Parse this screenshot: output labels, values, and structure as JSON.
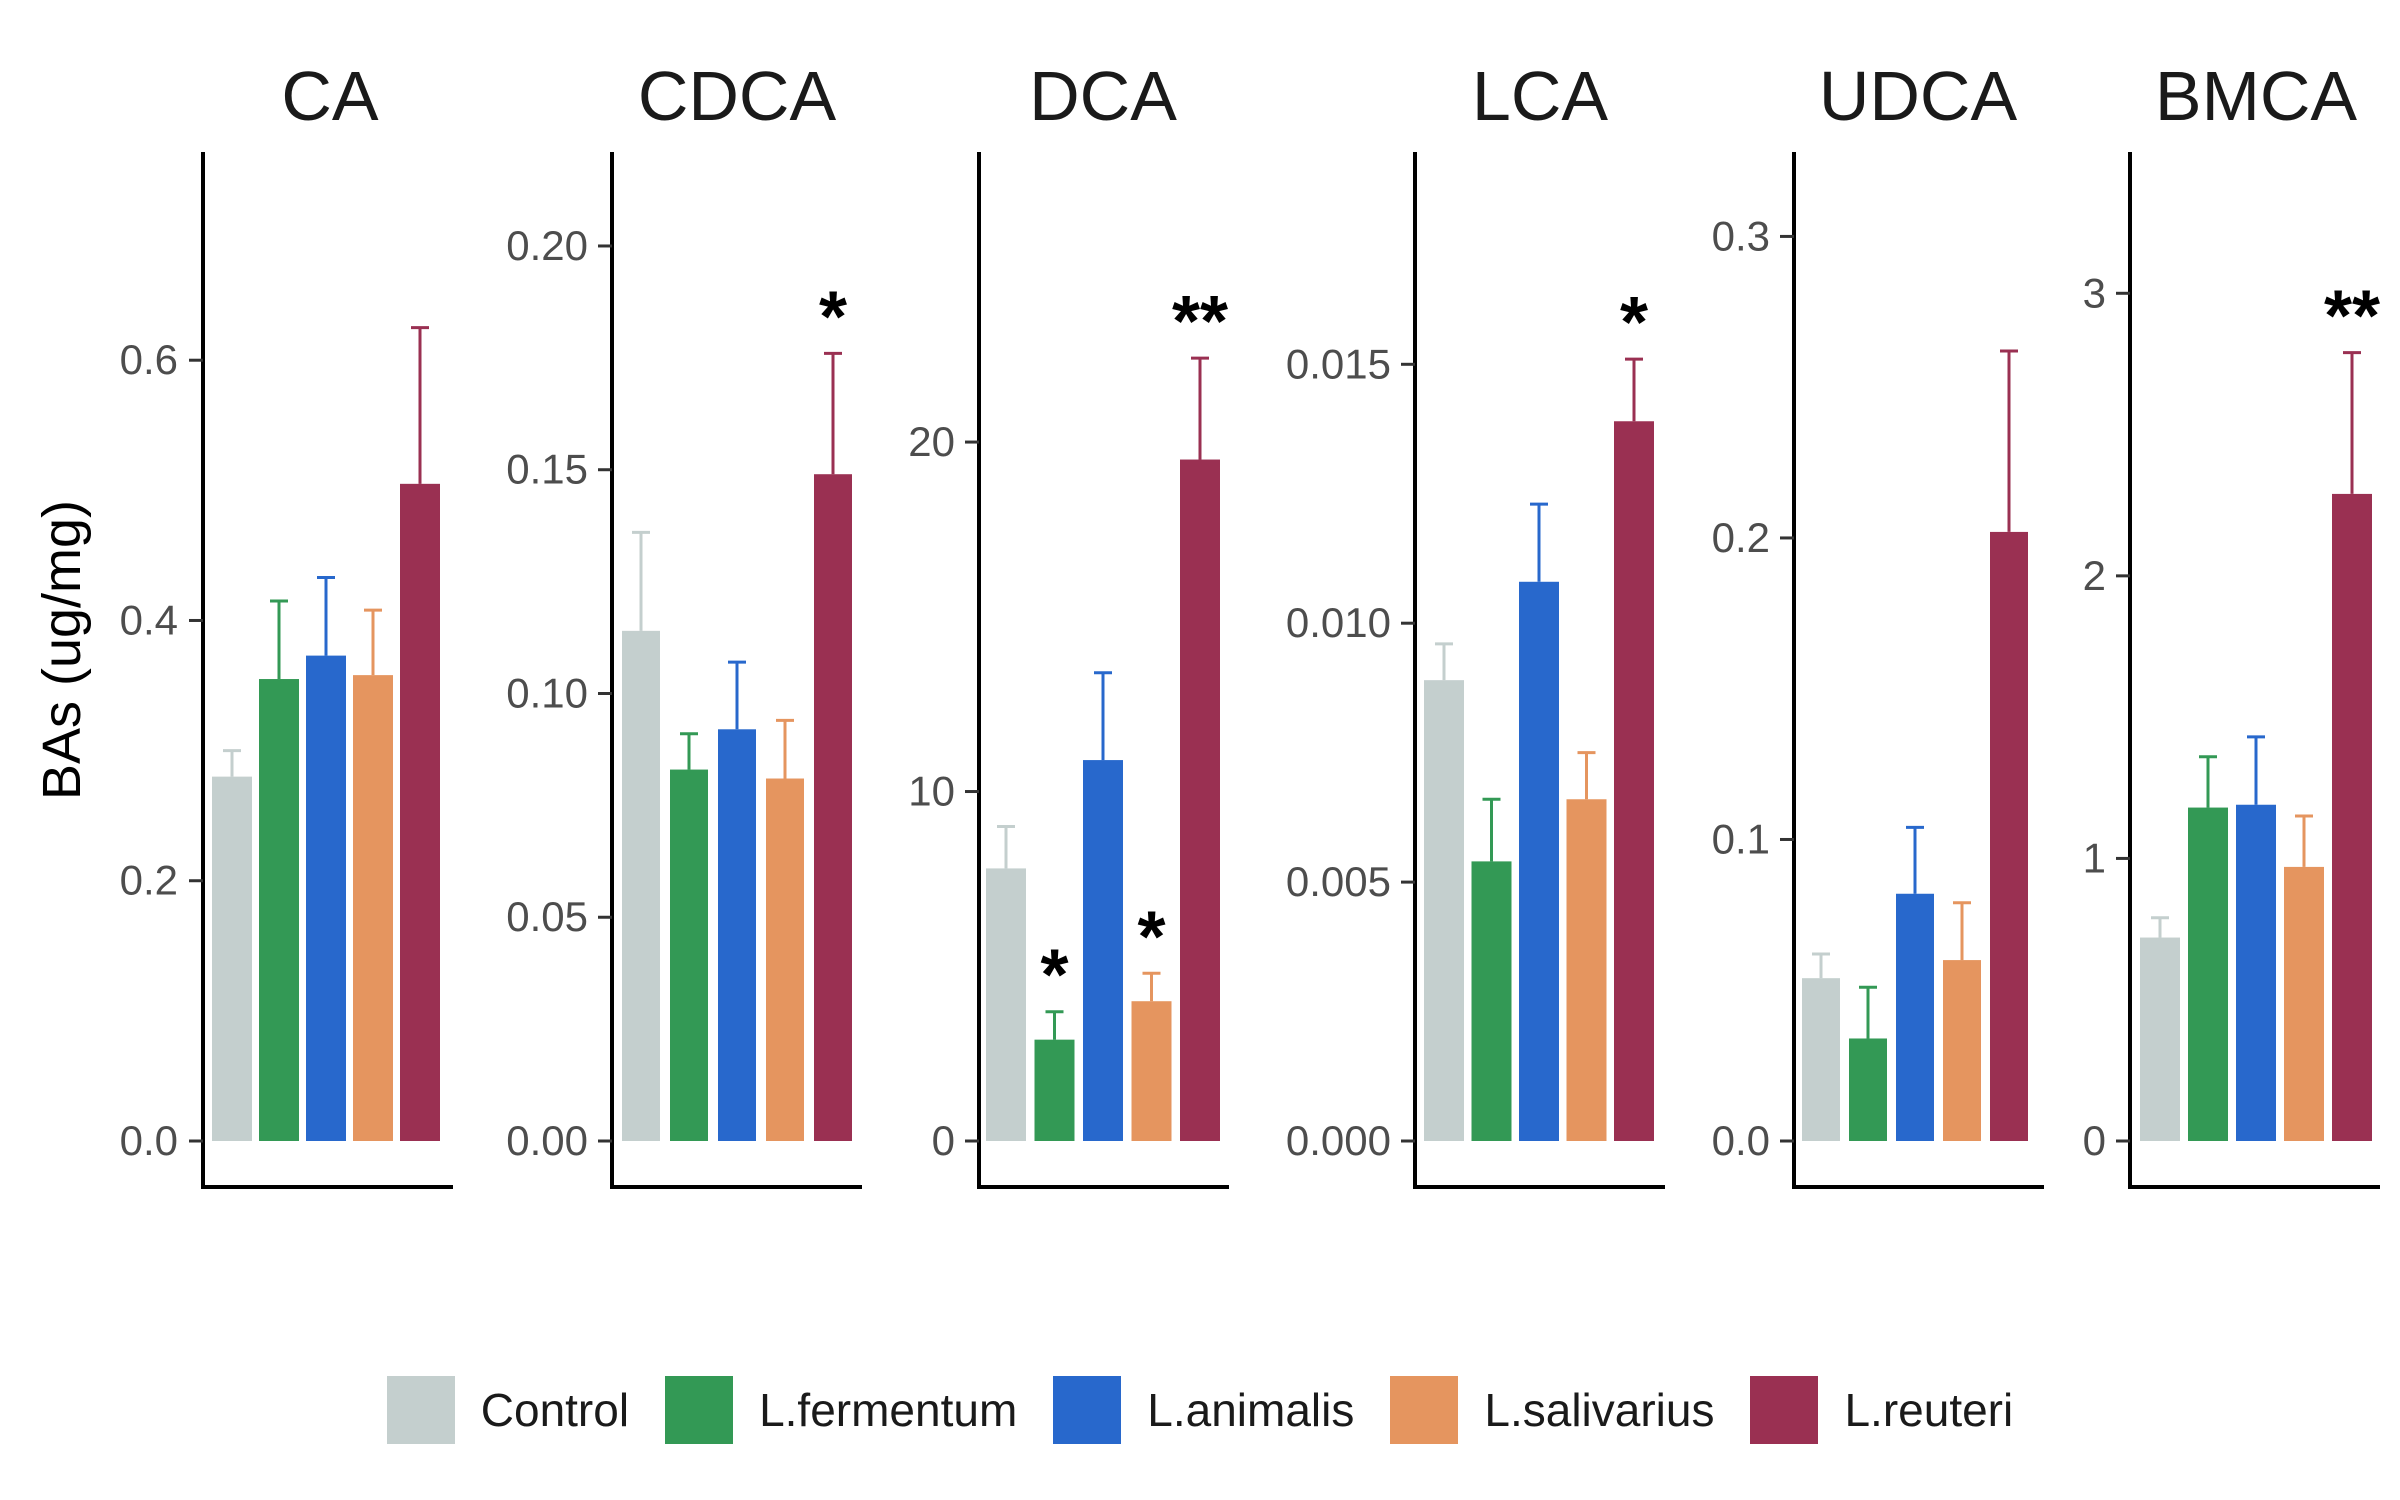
{
  "chart_data": {
    "type": "bar",
    "ylabel": "BAs (ug/mg)",
    "legend_position": "bottom",
    "categories": [
      "Control",
      "L.fermentum",
      "L.animalis",
      "L.salivarius",
      "L.reuteri"
    ],
    "colors": [
      "#c4cfce",
      "#339955",
      "#2868cc",
      "#e5955f",
      "#9a3052"
    ],
    "panels": [
      {
        "title": "CA",
        "ylim": [
          0,
          0.76
        ],
        "ticks": [
          0.0,
          0.2,
          0.4,
          0.6
        ],
        "tick_labels": [
          "0.0",
          "0.2",
          "0.4",
          "0.6"
        ],
        "values": [
          0.28,
          0.355,
          0.373,
          0.358,
          0.505
        ],
        "errors": [
          0.02,
          0.06,
          0.06,
          0.05,
          0.12
        ],
        "annotations": [
          "",
          "",
          "",
          "",
          ""
        ]
      },
      {
        "title": "CDCA",
        "ylim": [
          0,
          0.221
        ],
        "ticks": [
          0.0,
          0.05,
          0.1,
          0.15,
          0.2
        ],
        "tick_labels": [
          "0.00",
          "0.05",
          "0.10",
          "0.15",
          "0.20"
        ],
        "values": [
          0.114,
          0.083,
          0.092,
          0.081,
          0.149
        ],
        "errors": [
          0.022,
          0.008,
          0.015,
          0.013,
          0.027
        ],
        "annotations": [
          "",
          "",
          "",
          "",
          "*"
        ]
      },
      {
        "title": "DCA",
        "ylim": [
          0,
          28.3
        ],
        "ticks": [
          0,
          10,
          20
        ],
        "tick_labels": [
          "0",
          "10",
          "20"
        ],
        "values": [
          7.8,
          2.9,
          10.9,
          4.0,
          19.5
        ],
        "errors": [
          1.2,
          0.8,
          2.5,
          0.8,
          2.9
        ],
        "annotations": [
          "",
          "*",
          "",
          "*",
          "**"
        ]
      },
      {
        "title": "LCA",
        "ylim": [
          0,
          0.0191
        ],
        "ticks": [
          0.0,
          0.005,
          0.01,
          0.015
        ],
        "tick_labels": [
          "0.000",
          "0.005",
          "0.010",
          "0.015"
        ],
        "values": [
          0.0089,
          0.0054,
          0.0108,
          0.0066,
          0.0139
        ],
        "errors": [
          0.0007,
          0.0012,
          0.0015,
          0.0009,
          0.0012
        ],
        "annotations": [
          "",
          "",
          "",
          "",
          "*"
        ]
      },
      {
        "title": "UDCA",
        "ylim": [
          0,
          0.328
        ],
        "ticks": [
          0.0,
          0.1,
          0.2,
          0.3
        ],
        "tick_labels": [
          "0.0",
          "0.1",
          "0.2",
          "0.3"
        ],
        "values": [
          0.054,
          0.034,
          0.082,
          0.06,
          0.202
        ],
        "errors": [
          0.008,
          0.017,
          0.022,
          0.019,
          0.06
        ],
        "annotations": [
          "",
          "",
          "",
          "",
          ""
        ]
      },
      {
        "title": "BMCA",
        "ylim": [
          0,
          3.5
        ],
        "ticks": [
          0,
          1,
          2,
          3
        ],
        "tick_labels": [
          "0",
          "1",
          "2",
          "3"
        ],
        "values": [
          0.72,
          1.18,
          1.19,
          0.97,
          2.29
        ],
        "errors": [
          0.07,
          0.18,
          0.24,
          0.18,
          0.5
        ],
        "annotations": [
          "",
          "",
          "",
          "",
          "**"
        ]
      }
    ]
  }
}
